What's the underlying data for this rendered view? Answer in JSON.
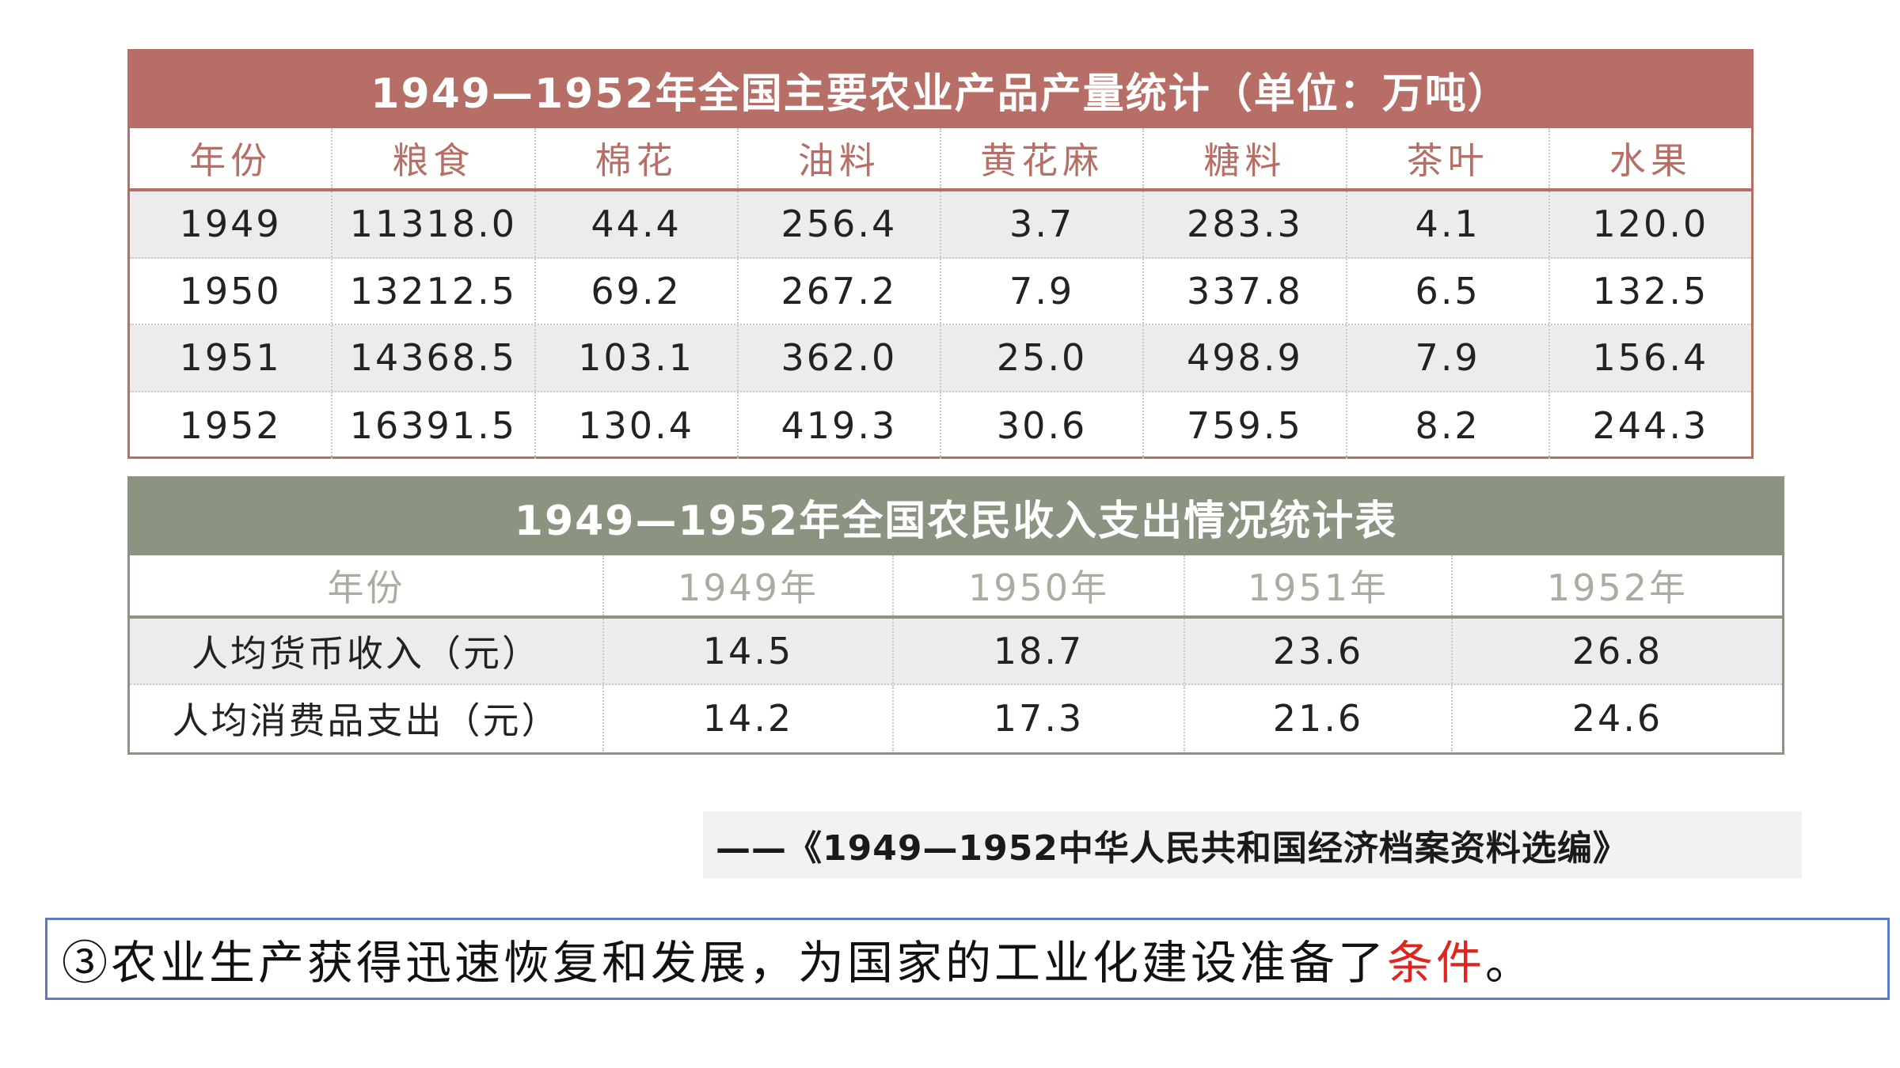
{
  "table1": {
    "title": "1949—1952年全国主要农业产品产量统计（单位：万吨）",
    "headers": [
      "年份",
      "粮食",
      "棉花",
      "油料",
      "黄花麻",
      "糖料",
      "茶叶",
      "水果"
    ],
    "rows": [
      [
        "1949",
        "11318.0",
        "44.4",
        "256.4",
        "3.7",
        "283.3",
        "4.1",
        "120.0"
      ],
      [
        "1950",
        "13212.5",
        "69.2",
        "267.2",
        "7.9",
        "337.8",
        "6.5",
        "132.5"
      ],
      [
        "1951",
        "14368.5",
        "103.1",
        "362.0",
        "25.0",
        "498.9",
        "7.9",
        "156.4"
      ],
      [
        "1952",
        "16391.5",
        "130.4",
        "419.3",
        "30.6",
        "759.5",
        "8.2",
        "244.3"
      ]
    ]
  },
  "table2": {
    "title": "1949—1952年全国农民收入支出情况统计表",
    "headers": [
      "年份",
      "1949年",
      "1950年",
      "1951年",
      "1952年"
    ],
    "rows": [
      [
        "人均货币收入（元）",
        "14.5",
        "18.7",
        "23.6",
        "26.8"
      ],
      [
        "人均消费品支出（元）",
        "14.2",
        "17.3",
        "21.6",
        "24.6"
      ]
    ]
  },
  "source": "——《1949—1952中华人民共和国经济档案资料选编》",
  "conclusion": {
    "text": "③农业生产获得迅速恢复和发展，为国家的工业化建设准备了",
    "highlight": "条件",
    "end": "。"
  },
  "colors": {
    "table1_accent": "#b76e66",
    "table2_accent": "#8a9480",
    "highlight": "#e0251c",
    "box_border": "#5a7cc4"
  }
}
